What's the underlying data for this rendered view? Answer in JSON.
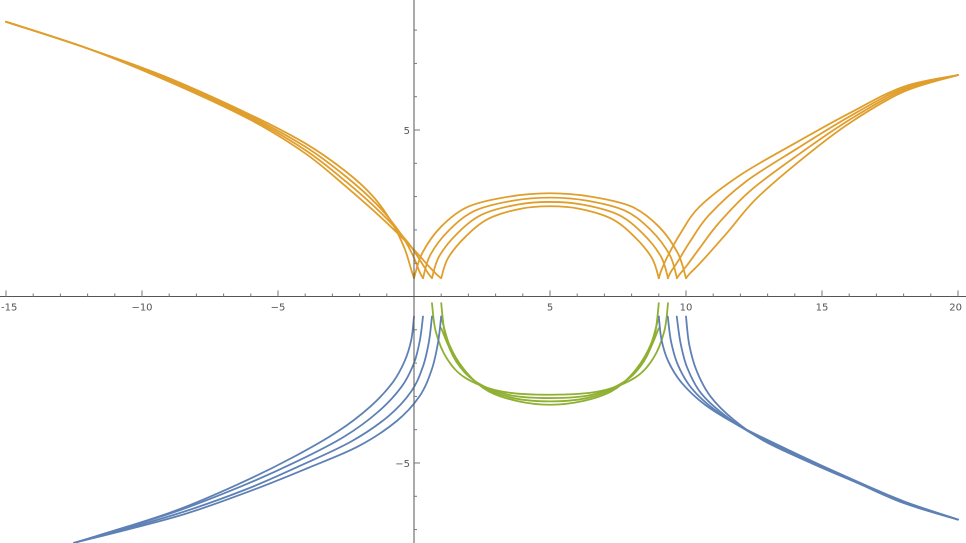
{
  "chart_data": {
    "type": "line",
    "title": "",
    "xlabel": "",
    "ylabel": "",
    "xlim": [
      -15,
      20
    ],
    "ylim": [
      -7.4,
      8.9
    ],
    "grid": false,
    "legend": "none",
    "x_ticks": [
      {
        "value": -15,
        "label": "-15"
      },
      {
        "value": -10,
        "label": "−10"
      },
      {
        "value": -5,
        "label": "−5"
      },
      {
        "value": 5,
        "label": "5"
      },
      {
        "value": 10,
        "label": "10"
      },
      {
        "value": 15,
        "label": "15"
      },
      {
        "value": 20,
        "label": "20"
      }
    ],
    "y_ticks": [
      {
        "value": 5,
        "label": "5"
      },
      {
        "value": -5,
        "label": "−5"
      }
    ],
    "colors": {
      "orange": "#e09e2c",
      "blue": "#5e81b5",
      "green": "#8fb032",
      "axis": "#555555"
    },
    "series": [
      {
        "color": "orange",
        "x": [
          -15,
          -12,
          -9,
          -6,
          -4,
          -2.5,
          -1.5,
          -0.8,
          -0.35,
          -0.1,
          0
        ],
        "y": [
          8.25,
          7.45,
          6.55,
          5.45,
          4.6,
          3.75,
          3.0,
          2.2,
          1.45,
          0.8,
          0.55
        ]
      },
      {
        "color": "orange",
        "x": [
          -15,
          -12,
          -9,
          -6,
          -4,
          -2.5,
          -1.35,
          -0.5,
          -0.05,
          0.2,
          0.33
        ],
        "y": [
          8.25,
          7.45,
          6.55,
          5.4,
          4.5,
          3.6,
          2.75,
          1.9,
          1.25,
          0.75,
          0.55
        ]
      },
      {
        "color": "orange",
        "x": [
          -15,
          -12,
          -9,
          -6,
          -4,
          -2.5,
          -1.2,
          -0.25,
          0.25,
          0.52,
          0.66
        ],
        "y": [
          8.25,
          7.45,
          6.5,
          5.35,
          4.4,
          3.45,
          2.5,
          1.65,
          1.05,
          0.7,
          0.55
        ]
      },
      {
        "color": "orange",
        "x": [
          -15,
          -12,
          -9,
          -6,
          -4,
          -2.5,
          -1.05,
          0.0,
          0.55,
          0.85,
          1.0
        ],
        "y": [
          8.25,
          7.45,
          6.45,
          5.3,
          4.3,
          3.3,
          2.25,
          1.4,
          0.9,
          0.65,
          0.55
        ]
      },
      {
        "color": "orange",
        "x": [
          0,
          0.3,
          1,
          2,
          3.5,
          5,
          6.5,
          8,
          9,
          9.7,
          10
        ],
        "y": [
          0.55,
          1.3,
          2.1,
          2.7,
          3.0,
          3.1,
          3.0,
          2.7,
          2.1,
          1.3,
          0.55
        ]
      },
      {
        "color": "orange",
        "x": [
          0.33,
          0.6,
          1.3,
          2.25,
          3.65,
          5,
          6.35,
          7.75,
          8.7,
          9.4,
          9.67
        ],
        "y": [
          0.55,
          1.25,
          2.0,
          2.58,
          2.88,
          2.97,
          2.88,
          2.58,
          2.0,
          1.25,
          0.55
        ]
      },
      {
        "color": "orange",
        "x": [
          0.66,
          0.92,
          1.6,
          2.5,
          3.8,
          5,
          6.2,
          7.5,
          8.4,
          9.08,
          9.34
        ],
        "y": [
          0.55,
          1.2,
          1.9,
          2.46,
          2.76,
          2.84,
          2.76,
          2.46,
          1.9,
          1.2,
          0.55
        ]
      },
      {
        "color": "orange",
        "x": [
          1.0,
          1.25,
          1.9,
          2.75,
          3.95,
          5,
          6.05,
          7.25,
          8.1,
          8.75,
          9.0
        ],
        "y": [
          0.55,
          1.15,
          1.8,
          2.34,
          2.64,
          2.71,
          2.64,
          2.34,
          1.8,
          1.15,
          0.55
        ]
      },
      {
        "color": "orange",
        "x": [
          9,
          9.1,
          9.35,
          9.8,
          10.5,
          12,
          14,
          16,
          18,
          20
        ],
        "y": [
          0.55,
          0.8,
          1.25,
          1.9,
          2.7,
          3.65,
          4.6,
          5.5,
          6.3,
          6.65
        ]
      },
      {
        "color": "orange",
        "x": [
          9.33,
          9.45,
          9.7,
          10.15,
          10.85,
          12.2,
          14.1,
          16,
          18,
          20
        ],
        "y": [
          0.55,
          0.75,
          1.05,
          1.65,
          2.45,
          3.45,
          4.45,
          5.4,
          6.25,
          6.65
        ]
      },
      {
        "color": "orange",
        "x": [
          9.66,
          9.8,
          10.05,
          10.5,
          11.2,
          12.4,
          14.2,
          16,
          18,
          20
        ],
        "y": [
          0.55,
          0.7,
          0.95,
          1.45,
          2.2,
          3.2,
          4.3,
          5.3,
          6.2,
          6.65
        ]
      },
      {
        "color": "orange",
        "x": [
          10,
          10.15,
          10.4,
          10.85,
          11.55,
          12.6,
          14.3,
          16,
          18,
          20
        ],
        "y": [
          0.55,
          0.7,
          0.9,
          1.3,
          1.95,
          2.95,
          4.15,
          5.2,
          6.15,
          6.65
        ]
      },
      {
        "color": "green",
        "x": [
          0.66,
          0.8,
          1.2,
          1.9,
          3.2,
          5,
          6.8,
          8.1,
          8.8,
          9.2,
          9.34
        ],
        "y": [
          -0.2,
          -1.05,
          -1.85,
          -2.45,
          -2.85,
          -2.95,
          -2.85,
          -2.45,
          -1.85,
          -1.05,
          -0.2
        ]
      },
      {
        "color": "green",
        "x": [
          1.0,
          1.15,
          1.55,
          2.25,
          3.45,
          5,
          6.55,
          7.75,
          8.45,
          8.85,
          9.0
        ],
        "y": [
          -0.2,
          -1.15,
          -1.95,
          -2.55,
          -2.95,
          -3.05,
          -2.95,
          -2.55,
          -1.95,
          -1.15,
          -0.2
        ]
      },
      {
        "color": "green",
        "x": [
          1.0,
          1.3,
          1.8,
          2.5,
          3.65,
          5,
          6.35,
          7.5,
          8.2,
          8.7,
          9.0
        ],
        "y": [
          -0.6,
          -1.45,
          -2.15,
          -2.7,
          -3.05,
          -3.15,
          -3.05,
          -2.7,
          -2.15,
          -1.45,
          -0.6
        ]
      },
      {
        "color": "green",
        "x": [
          1.0,
          1.4,
          2.0,
          2.75,
          3.85,
          5,
          6.15,
          7.25,
          8.0,
          8.6,
          9.0
        ],
        "y": [
          -0.95,
          -1.7,
          -2.35,
          -2.85,
          -3.15,
          -3.25,
          -3.15,
          -2.85,
          -2.35,
          -1.7,
          -0.95
        ]
      },
      {
        "color": "blue",
        "x": [
          0,
          -0.1,
          -0.35,
          -0.8,
          -1.6,
          -2.8,
          -4.5,
          -6.5,
          -9,
          -12.5
        ],
        "y": [
          -0.6,
          -1.3,
          -1.95,
          -2.6,
          -3.3,
          -4.05,
          -4.85,
          -5.65,
          -6.5,
          -7.4
        ]
      },
      {
        "color": "blue",
        "x": [
          0.33,
          0.22,
          0.0,
          -0.45,
          -1.3,
          -2.55,
          -4.3,
          -6.35,
          -8.9,
          -12.5
        ],
        "y": [
          -0.6,
          -1.3,
          -2.0,
          -2.7,
          -3.45,
          -4.2,
          -4.95,
          -5.7,
          -6.5,
          -7.4
        ]
      },
      {
        "color": "blue",
        "x": [
          0.66,
          0.55,
          0.33,
          -0.1,
          -0.95,
          -2.3,
          -4.1,
          -6.2,
          -8.8,
          -12.5
        ],
        "y": [
          -0.6,
          -1.35,
          -2.1,
          -2.85,
          -3.6,
          -4.35,
          -5.05,
          -5.8,
          -6.55,
          -7.4
        ]
      },
      {
        "color": "blue",
        "x": [
          1.0,
          0.88,
          0.65,
          0.2,
          -0.65,
          -2.05,
          -3.9,
          -6.05,
          -8.7,
          -12.5
        ],
        "y": [
          -0.6,
          -1.4,
          -2.2,
          -3.0,
          -3.75,
          -4.5,
          -5.15,
          -5.85,
          -6.6,
          -7.4
        ]
      },
      {
        "color": "blue",
        "x": [
          9,
          9.1,
          9.35,
          9.85,
          10.7,
          12,
          14,
          16,
          18,
          20
        ],
        "y": [
          -0.6,
          -1.3,
          -1.95,
          -2.6,
          -3.25,
          -3.9,
          -4.7,
          -5.45,
          -6.15,
          -6.7
        ]
      },
      {
        "color": "blue",
        "x": [
          9.33,
          9.45,
          9.7,
          10.2,
          11.05,
          12.3,
          14.2,
          16.1,
          18,
          20
        ],
        "y": [
          -0.6,
          -1.35,
          -2.05,
          -2.75,
          -3.4,
          -4.05,
          -4.8,
          -5.5,
          -6.15,
          -6.7
        ]
      },
      {
        "color": "blue",
        "x": [
          9.66,
          9.8,
          10.05,
          10.55,
          11.4,
          12.6,
          14.4,
          16.2,
          18,
          20
        ],
        "y": [
          -0.6,
          -1.4,
          -2.15,
          -2.9,
          -3.55,
          -4.2,
          -4.9,
          -5.55,
          -6.2,
          -6.7
        ]
      },
      {
        "color": "blue",
        "x": [
          10,
          10.12,
          10.4,
          10.9,
          11.75,
          12.9,
          14.6,
          16.3,
          18,
          20
        ],
        "y": [
          -0.6,
          -1.45,
          -2.25,
          -3.0,
          -3.7,
          -4.35,
          -5.0,
          -5.6,
          -6.2,
          -6.7
        ]
      }
    ]
  }
}
